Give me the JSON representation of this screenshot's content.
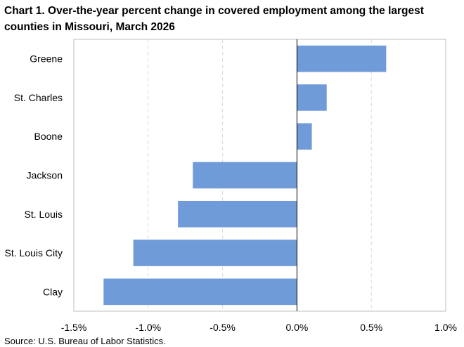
{
  "chart_data": {
    "type": "bar",
    "orientation": "horizontal",
    "title": "Chart 1. Over-the-year percent change in covered employment among the largest counties in Missouri, March 2026",
    "categories": [
      "Greene",
      "St. Charles",
      "Boone",
      "Jackson",
      "St. Louis",
      "St. Louis City",
      "Clay"
    ],
    "values": [
      0.6,
      0.2,
      0.1,
      -0.7,
      -0.8,
      -1.1,
      -1.3
    ],
    "xlim": [
      -1.5,
      1.0
    ],
    "xticks": [
      -1.5,
      -1.0,
      -0.5,
      0.0,
      0.5,
      1.0
    ],
    "xtick_labels": [
      "-1.5%",
      "-1.0%",
      "-0.5%",
      "0.0%",
      "0.5%",
      "1.0%"
    ],
    "xlabel": "",
    "ylabel": "",
    "grid": "vertical dashed",
    "legend": "none",
    "bar_color": "#6f9bd8",
    "source": "Source: U.S. Bureau of Labor Statistics."
  }
}
